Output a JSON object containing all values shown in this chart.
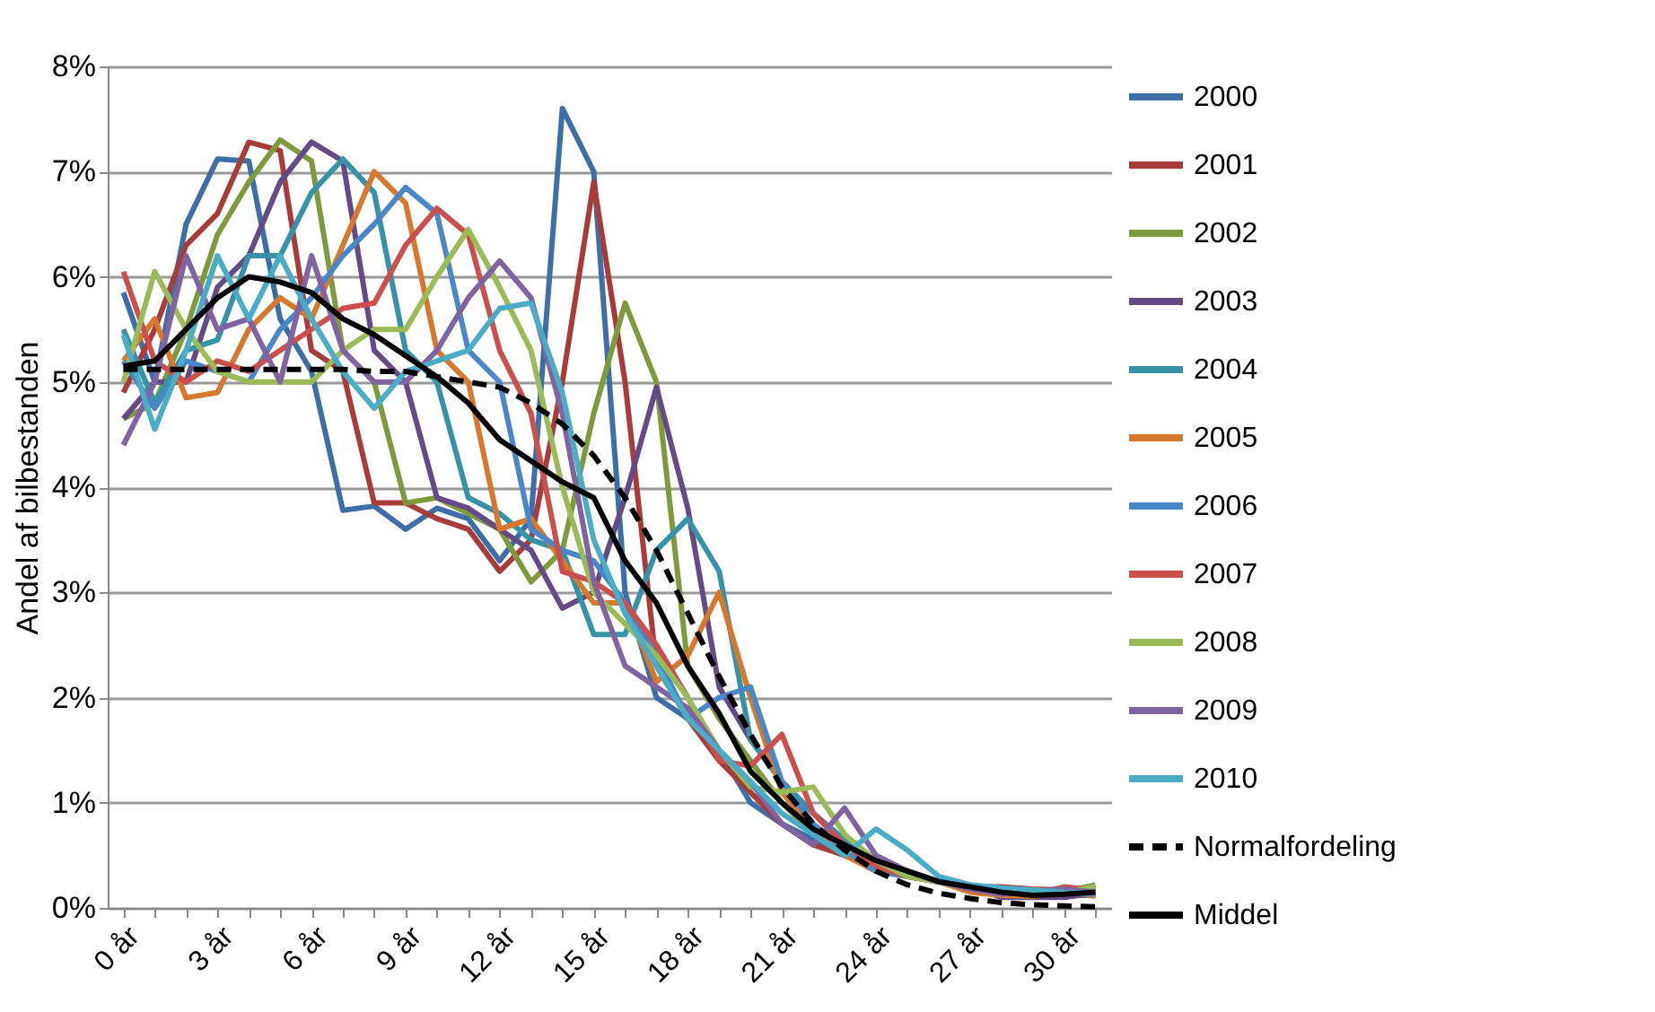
{
  "chart_data": {
    "type": "line",
    "ylabel": "Andel af bilbestanden",
    "legend": "right",
    "grid": "y",
    "marker": "none",
    "categories": [
      "0 år",
      null,
      null,
      "3 år",
      null,
      null,
      "6 år",
      null,
      null,
      "9 år",
      null,
      null,
      "12 år",
      null,
      null,
      "15 år",
      null,
      null,
      "18 år",
      null,
      null,
      "21 år",
      null,
      null,
      "24 år",
      null,
      null,
      "27 år",
      null,
      null,
      "30 år",
      null
    ],
    "ylim": [
      0,
      8
    ],
    "yticks": [
      {
        "value": 0,
        "label": "0%"
      },
      {
        "value": 1,
        "label": "1%"
      },
      {
        "value": 2,
        "label": "2%"
      },
      {
        "value": 3,
        "label": "3%"
      },
      {
        "value": 4,
        "label": "4%"
      },
      {
        "value": 5,
        "label": "5%"
      },
      {
        "value": 6,
        "label": "6%"
      },
      {
        "value": 7,
        "label": "7%"
      },
      {
        "value": 8,
        "label": "8%"
      }
    ],
    "series": [
      {
        "name": "2000",
        "color": "#3d6ea8",
        "line_style": "solid",
        "values": [
          5.85,
          5.0,
          6.5,
          7.12,
          7.1,
          5.6,
          5.1,
          3.78,
          3.82,
          3.6,
          3.8,
          3.7,
          3.3,
          3.7,
          7.6,
          7.0,
          3.0,
          2.0,
          1.8,
          1.5,
          1.0,
          0.8,
          0.65,
          0.5,
          0.4,
          0.3,
          0.25,
          0.2,
          0.15,
          0.13,
          0.12,
          0.12
        ]
      },
      {
        "name": "2001",
        "color": "#a83c3a",
        "line_style": "solid",
        "values": [
          4.9,
          5.5,
          6.3,
          6.6,
          7.28,
          7.2,
          5.3,
          5.1,
          3.85,
          3.85,
          3.7,
          3.6,
          3.2,
          3.5,
          5.0,
          6.9,
          5.0,
          2.3,
          1.8,
          1.4,
          1.1,
          0.8,
          0.6,
          0.5,
          0.4,
          0.3,
          0.25,
          0.2,
          0.2,
          0.18,
          0.17,
          0.16
        ]
      },
      {
        "name": "2002",
        "color": "#7e9a3d",
        "line_style": "solid",
        "values": [
          4.65,
          4.8,
          5.5,
          6.4,
          6.9,
          7.3,
          7.1,
          5.3,
          5.0,
          3.85,
          3.9,
          3.75,
          3.6,
          3.1,
          3.4,
          4.7,
          5.75,
          5.0,
          2.3,
          1.8,
          1.4,
          1.0,
          0.7,
          0.5,
          0.45,
          0.35,
          0.25,
          0.2,
          0.17,
          0.15,
          0.15,
          0.22
        ]
      },
      {
        "name": "2003",
        "color": "#654b86",
        "line_style": "solid",
        "values": [
          4.65,
          5.0,
          5.0,
          5.9,
          6.2,
          6.9,
          7.28,
          7.1,
          5.3,
          5.0,
          3.9,
          3.8,
          3.6,
          3.4,
          2.85,
          3.0,
          3.9,
          4.95,
          3.8,
          2.1,
          1.6,
          1.2,
          0.9,
          0.6,
          0.45,
          0.35,
          0.25,
          0.2,
          0.1,
          0.1,
          0.1,
          0.14
        ]
      },
      {
        "name": "2004",
        "color": "#3792a8",
        "line_style": "solid",
        "values": [
          5.5,
          4.8,
          5.3,
          5.4,
          6.2,
          6.2,
          6.8,
          7.12,
          6.8,
          5.3,
          5.0,
          3.9,
          3.75,
          3.5,
          3.4,
          2.6,
          2.6,
          3.4,
          3.7,
          3.2,
          1.6,
          1.2,
          0.9,
          0.65,
          0.45,
          0.35,
          0.25,
          0.2,
          0.19,
          0.14,
          0.13,
          0.18
        ]
      },
      {
        "name": "2005",
        "color": "#d6782d",
        "line_style": "solid",
        "values": [
          5.2,
          5.6,
          4.85,
          4.9,
          5.5,
          5.8,
          5.6,
          6.3,
          7.0,
          6.7,
          5.3,
          5.0,
          3.6,
          3.7,
          3.3,
          2.9,
          2.9,
          2.15,
          2.4,
          3.0,
          2.0,
          1.1,
          0.75,
          0.5,
          0.35,
          0.3,
          0.25,
          0.15,
          0.12,
          0.11,
          0.16,
          0.11
        ]
      },
      {
        "name": "2006",
        "color": "#4a87c8",
        "line_style": "solid",
        "values": [
          5.2,
          4.75,
          5.2,
          5.1,
          5.0,
          5.5,
          5.8,
          6.2,
          6.5,
          6.85,
          6.6,
          5.3,
          5.0,
          3.6,
          3.4,
          3.3,
          2.9,
          2.4,
          1.8,
          2.0,
          2.1,
          1.2,
          0.8,
          0.55,
          0.35,
          0.3,
          0.25,
          0.2,
          0.14,
          0.16,
          0.14,
          0.13
        ]
      },
      {
        "name": "2007",
        "color": "#c9504d",
        "line_style": "solid",
        "values": [
          6.05,
          5.2,
          5.0,
          5.2,
          5.1,
          5.3,
          5.5,
          5.7,
          5.75,
          6.3,
          6.65,
          6.4,
          5.3,
          4.7,
          3.2,
          3.1,
          2.9,
          2.5,
          2.0,
          1.4,
          1.35,
          1.65,
          0.9,
          0.6,
          0.4,
          0.3,
          0.25,
          0.2,
          0.16,
          0.13,
          0.2,
          0.17
        ]
      },
      {
        "name": "2008",
        "color": "#9bbb59",
        "line_style": "solid",
        "values": [
          5.0,
          6.05,
          5.5,
          5.1,
          5.0,
          5.0,
          5.0,
          5.3,
          5.5,
          5.5,
          6.0,
          6.45,
          5.9,
          5.3,
          4.0,
          3.0,
          2.7,
          2.4,
          2.0,
          1.5,
          1.15,
          1.1,
          1.15,
          0.7,
          0.45,
          0.3,
          0.25,
          0.2,
          0.18,
          0.17,
          0.15,
          0.2
        ]
      },
      {
        "name": "2009",
        "color": "#8064a2",
        "line_style": "solid",
        "values": [
          4.4,
          5.0,
          6.2,
          5.5,
          5.6,
          5.0,
          6.2,
          5.3,
          5.0,
          5.0,
          5.3,
          5.8,
          6.15,
          5.8,
          4.7,
          3.1,
          2.3,
          2.1,
          1.9,
          1.5,
          1.2,
          0.8,
          0.6,
          0.95,
          0.5,
          0.35,
          0.25,
          0.18,
          0.13,
          0.16,
          0.18,
          0.15
        ]
      },
      {
        "name": "2010",
        "color": "#4bacc6",
        "line_style": "solid",
        "values": [
          5.45,
          4.55,
          5.3,
          6.2,
          5.6,
          6.2,
          5.6,
          5.1,
          4.75,
          5.1,
          5.2,
          5.3,
          5.7,
          5.75,
          4.9,
          3.5,
          2.8,
          2.3,
          1.8,
          1.5,
          1.2,
          0.9,
          0.7,
          0.5,
          0.75,
          0.55,
          0.3,
          0.22,
          0.19,
          0.17,
          0.15,
          0.14
        ]
      },
      {
        "name": "Normalfordeling",
        "color": "#000000",
        "line_style": "dashed",
        "values": [
          5.12,
          5.12,
          5.12,
          5.12,
          5.12,
          5.12,
          5.12,
          5.12,
          5.1,
          5.1,
          5.05,
          5.0,
          4.95,
          4.8,
          4.6,
          4.3,
          3.9,
          3.4,
          2.8,
          2.2,
          1.65,
          1.15,
          0.8,
          0.55,
          0.35,
          0.22,
          0.14,
          0.09,
          0.05,
          0.03,
          0.02,
          0.01
        ]
      },
      {
        "name": "Middel",
        "color": "#000000",
        "line_style": "solid",
        "values": [
          5.15,
          5.2,
          5.5,
          5.8,
          6.0,
          5.95,
          5.85,
          5.6,
          5.45,
          5.25,
          5.05,
          4.8,
          4.45,
          4.25,
          4.05,
          3.9,
          3.3,
          2.9,
          2.3,
          1.85,
          1.3,
          1.0,
          0.75,
          0.6,
          0.45,
          0.35,
          0.25,
          0.2,
          0.15,
          0.12,
          0.13,
          0.15
        ]
      }
    ]
  }
}
